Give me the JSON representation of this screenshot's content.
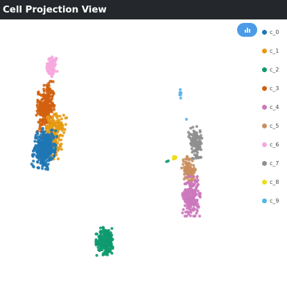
{
  "window": {
    "title": "Cell Projection View"
  },
  "toolbar": {
    "button_icon": "bar-chart-icon"
  },
  "legend": {
    "items": [
      {
        "label": "c_0",
        "color": "#1f77b4"
      },
      {
        "label": "c_1",
        "color": "#e69a12"
      },
      {
        "label": "c_2",
        "color": "#0e9a6e"
      },
      {
        "label": "c_3",
        "color": "#d2600f"
      },
      {
        "label": "c_4",
        "color": "#cc78bc"
      },
      {
        "label": "c_5",
        "color": "#ca8f5f"
      },
      {
        "label": "c_6",
        "color": "#f6a8dd"
      },
      {
        "label": "c_7",
        "color": "#8f8f8f"
      },
      {
        "label": "c_8",
        "color": "#ecdd18"
      },
      {
        "label": "c_9",
        "color": "#56b4e9"
      }
    ]
  },
  "chart_data": {
    "type": "scatter",
    "title": "",
    "xlabel": "",
    "ylabel": "",
    "grid": false,
    "axes_visible": false,
    "legend_position": "right",
    "xlim": [
      0,
      100
    ],
    "ylim": [
      0,
      100
    ],
    "series": [
      {
        "name": "c_0",
        "color": "#1f77b4",
        "count": 380,
        "center": [
          15.5,
          51.5
        ],
        "spread": [
          4.0,
          7.0
        ],
        "angle": -10
      },
      {
        "name": "c_1",
        "color": "#e69a12",
        "count": 250,
        "center": [
          19.0,
          56.5
        ],
        "spread": [
          4.0,
          8.0
        ],
        "angle": -10
      },
      {
        "name": "c_2",
        "color": "#0e9a6e",
        "count": 230,
        "center": [
          40.7,
          15.5
        ],
        "spread": [
          3.6,
          5.0
        ],
        "angle": 0
      },
      {
        "name": "c_3",
        "color": "#d2600f",
        "count": 260,
        "center": [
          16.0,
          68.0
        ],
        "spread": [
          3.2,
          9.0
        ],
        "angle": -5
      },
      {
        "name": "c_4",
        "color": "#cc78bc",
        "count": 230,
        "center": [
          76.0,
          33.0
        ],
        "spread": [
          3.3,
          7.0
        ],
        "angle": 0
      },
      {
        "name": "c_5",
        "color": "#ca8f5f",
        "count": 110,
        "center": [
          75.0,
          43.0
        ],
        "spread": [
          2.5,
          5.0
        ],
        "angle": 10
      },
      {
        "name": "c_6",
        "color": "#f6a8dd",
        "count": 75,
        "center": [
          18.5,
          83.5
        ],
        "spread": [
          2.2,
          4.5
        ],
        "angle": -5
      },
      {
        "name": "c_7",
        "color": "#8f8f8f",
        "count": 130,
        "center": [
          78.0,
          54.0
        ],
        "spread": [
          2.4,
          5.5
        ],
        "angle": 10
      },
      {
        "name": "c_8",
        "color": "#ecdd18",
        "count": 14,
        "center": [
          69.0,
          48.0
        ],
        "spread": [
          0.7,
          0.6
        ],
        "angle": 0
      },
      {
        "name": "c_9",
        "color": "#56b4e9",
        "count": 7,
        "center": [
          71.5,
          73.0
        ],
        "spread": [
          0.4,
          1.8
        ],
        "angle": 0
      }
    ],
    "extra_points": [
      {
        "series": "c_2",
        "x": 65.8,
        "y": 46.5
      },
      {
        "series": "c_2",
        "x": 66.5,
        "y": 46.8
      },
      {
        "series": "c_9",
        "x": 74.0,
        "y": 63.0
      }
    ]
  }
}
